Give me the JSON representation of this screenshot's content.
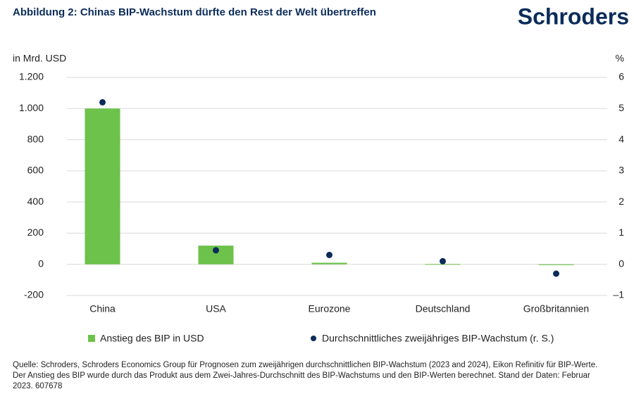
{
  "brand": "Schroders",
  "chart_data": {
    "type": "bar",
    "title": "Abbildung 2: Chinas BIP-Wachstum dürfte den Rest der Welt übertreffen",
    "y_label": "in Mrd. USD",
    "y2_label": "%",
    "categories": [
      "China",
      "USA",
      "Eurozone",
      "Deutschland",
      "Großbritannien"
    ],
    "series": [
      {
        "name": "Anstieg des BIP in USD",
        "type": "bar",
        "color": "#6cc24a",
        "values": [
          1000,
          120,
          10,
          2,
          -5
        ]
      },
      {
        "name": "Durchschnittliches zweijähriges BIP-Wachstum (r. S.)",
        "type": "scatter",
        "axis": "y2",
        "color": "#0b2c5a",
        "values": [
          5.2,
          0.45,
          0.3,
          0.1,
          -0.3
        ]
      }
    ],
    "ylim": [
      -200,
      1200
    ],
    "yticks": [
      {
        "value": 1200,
        "label": "1.200"
      },
      {
        "value": 1000,
        "label": "1.000"
      },
      800,
      600,
      400,
      200,
      0,
      -200
    ],
    "y2lim": [
      -1,
      6
    ],
    "y2ticks": [
      6,
      5,
      4,
      3,
      2,
      1,
      0,
      {
        "value": -1,
        "label": "–1"
      }
    ],
    "grid": true,
    "source": "Quelle: Schroders, Schroders Economics Group für Prognosen zum zweijährigen durchschnittlichen BIP-Wachstum (2023 and 2024), Eikon Refinitiv für BIP-Werte. Der Anstieg des BIP wurde durch das Produkt aus dem Zwei-Jahres-Durchschnitt des BIP-Wachstums und den BIP-Werten berechnet. Stand der Daten: Februar 2023. 607678"
  }
}
